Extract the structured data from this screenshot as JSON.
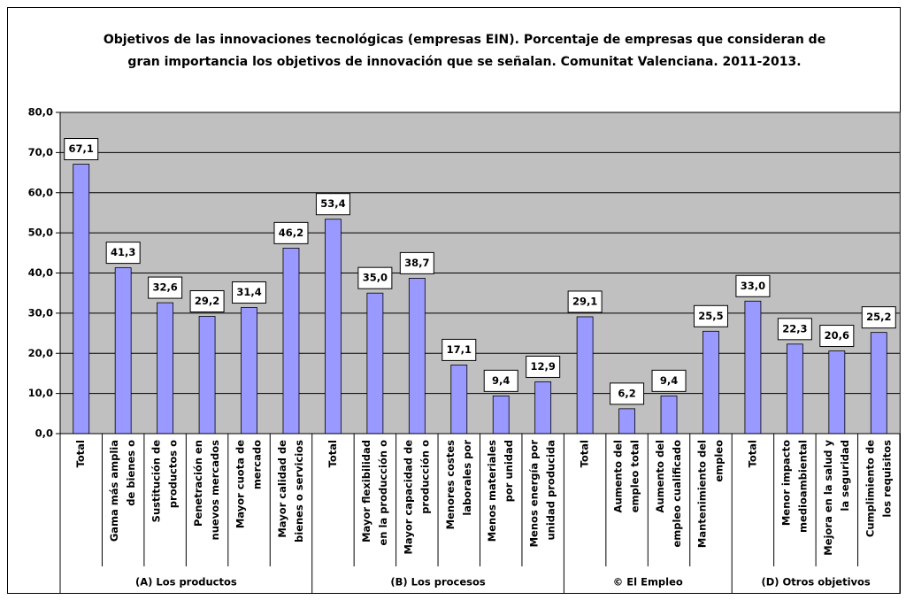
{
  "chart_data": {
    "type": "bar",
    "title": [
      "Objetivos de las innovaciones tecnológicas (empresas EIN). Porcentaje de empresas que consideran de",
      "gran importancia los objetivos de innovación que se señalan. Comunitat Valenciana. 2011-2013."
    ],
    "categories": [
      [
        "Total"
      ],
      [
        "Gama más amplia",
        "de bienes o"
      ],
      [
        "Sustitución de",
        "productos o"
      ],
      [
        "Penetración en",
        "nuevos mercados"
      ],
      [
        "Mayor cuota de",
        "mercado"
      ],
      [
        "Mayor calidad de",
        "bienes o servicios"
      ],
      [
        "Total"
      ],
      [
        "Mayor flexibilidad",
        "en la producción o"
      ],
      [
        "Mayor capacidad de",
        "producción o"
      ],
      [
        "Menores costes",
        "laborales por"
      ],
      [
        "Menos materiales",
        "por unidad"
      ],
      [
        "Menos energía por",
        "unidad producida"
      ],
      [
        "Total"
      ],
      [
        "Aumento del",
        "empleo total"
      ],
      [
        "Aumento del",
        "empleo cualificado"
      ],
      [
        "Mantenimiento del",
        "empleo"
      ],
      [
        "Total"
      ],
      [
        "Menor impacto",
        "medioambiental"
      ],
      [
        "Mejora en la salud y",
        "la seguridad"
      ],
      [
        "Cumplimiento de",
        "los requisitos"
      ]
    ],
    "groups": [
      {
        "label": "(A) Los productos",
        "size": 6
      },
      {
        "label": "(B) Los procesos",
        "size": 6
      },
      {
        "label": "© El Empleo",
        "size": 4
      },
      {
        "label": "(D) Otros objetivos",
        "size": 4
      }
    ],
    "values": [
      67.1,
      41.3,
      32.6,
      29.2,
      31.4,
      46.2,
      53.4,
      35.0,
      38.7,
      17.1,
      9.4,
      12.9,
      29.1,
      6.2,
      9.4,
      25.5,
      33.0,
      22.3,
      20.6,
      25.2
    ],
    "value_labels": [
      "67,1",
      "41,3",
      "32,6",
      "29,2",
      "31,4",
      "46,2",
      "53,4",
      "35,0",
      "38,7",
      "17,1",
      "9,4",
      "12,9",
      "29,1",
      "6,2",
      "9,4",
      "25,5",
      "33,0",
      "22,3",
      "20,6",
      "25,2"
    ],
    "color": "#9999ff",
    "ylim": [
      0,
      80
    ],
    "yticks": [
      {
        "value": 0,
        "label": "0,0"
      },
      {
        "value": 10,
        "label": "10,0"
      },
      {
        "value": 20,
        "label": "20,0"
      },
      {
        "value": 30,
        "label": "30,0"
      },
      {
        "value": 40,
        "label": "40,0"
      },
      {
        "value": 50,
        "label": "50,0"
      },
      {
        "value": 60,
        "label": "60,0"
      },
      {
        "value": 70,
        "label": "70,0"
      },
      {
        "value": 80,
        "label": "80,0"
      }
    ],
    "grid": true
  }
}
